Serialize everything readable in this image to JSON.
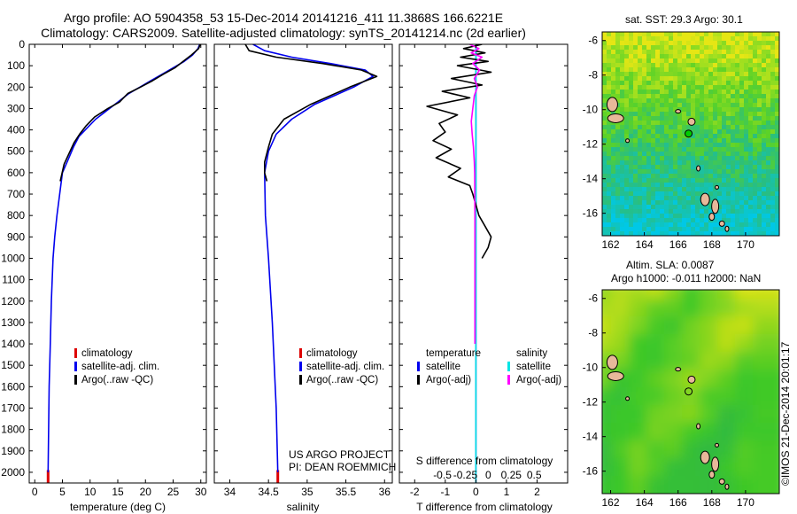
{
  "figure": {
    "title_line1": "Argo profile: AO 5904358_53 15-Dec-2014 20141216_411 11.3868S 166.6221E",
    "title_line2": "Climatology: CARS2009. Satellite-adjusted climatology: synTS_20141214.nc (2d earlier)",
    "sst_title": "sat. SST: 29.3 Argo: 30.1",
    "sla_title_line1": "Altim. SLA: 0.0087",
    "sla_title_line2": "Argo h1000: -0.011 h2000: NaN",
    "project_line1": "US ARGO PROJECT",
    "project_line2": "PI: DEAN ROEMMICH",
    "credit": "©IMOS 21-Dec-2014 20:01:17",
    "colors": {
      "climatology": "#dd0000",
      "satellite": "#0000ee",
      "argo": "#000000",
      "satellite_salinity": "#00e5e5",
      "argo_salinity": "#ff00ff"
    }
  },
  "chart_data": [
    {
      "type": "line",
      "id": "temperature",
      "xlabel": "temperature (deg C)",
      "xlim": [
        -1,
        31
      ],
      "ylim": [
        2050,
        0
      ],
      "xticks": [
        0,
        5,
        10,
        15,
        20,
        25,
        30
      ],
      "yticks": [
        0,
        100,
        200,
        300,
        400,
        500,
        600,
        700,
        800,
        900,
        1000,
        1100,
        1200,
        1300,
        1400,
        1500,
        1600,
        1700,
        1800,
        1900,
        2000
      ],
      "legend": [
        "climatology",
        "satellite-adj. clim.",
        "Argo(..raw -QC)"
      ],
      "series": [
        {
          "name": "climatology",
          "color": "#dd0000",
          "x": [
            2.4,
            2.4
          ],
          "y": [
            1990,
            2050
          ]
        },
        {
          "name": "satellite-adj. clim.",
          "color": "#0000ee",
          "x": [
            29.8,
            29.5,
            28.5,
            27,
            25,
            23,
            21,
            19,
            17,
            15,
            13,
            11,
            9.5,
            8,
            7,
            6,
            5,
            4.5,
            4,
            3.6,
            3.3,
            3,
            2.8,
            2.6,
            2.5,
            2.4
          ],
          "y": [
            0,
            20,
            50,
            80,
            110,
            140,
            170,
            200,
            230,
            270,
            310,
            350,
            390,
            430,
            480,
            540,
            600,
            700,
            800,
            900,
            1000,
            1200,
            1400,
            1600,
            1800,
            2000
          ]
        },
        {
          "name": "Argo(..raw -QC)",
          "color": "#000000",
          "x": [
            29.9,
            29.6,
            28.3,
            26.8,
            25.3,
            23.2,
            21.3,
            19.1,
            16.8,
            15.3,
            13.2,
            10.8,
            9.3,
            8.1,
            7.1,
            6.2,
            5.3,
            4.6
          ],
          "y": [
            0,
            20,
            50,
            80,
            110,
            140,
            170,
            200,
            230,
            270,
            300,
            340,
            380,
            420,
            460,
            510,
            560,
            640
          ]
        }
      ]
    },
    {
      "type": "line",
      "id": "salinity",
      "xlabel": "salinity",
      "xlim": [
        33.8,
        36.1
      ],
      "ylim": [
        2050,
        0
      ],
      "xticks": [
        34,
        34.5,
        35,
        35.5,
        36
      ],
      "legend": [
        "climatology",
        "satellite-adj. clim.",
        "Argo(..raw -QC)"
      ],
      "series": [
        {
          "name": "climatology",
          "color": "#dd0000",
          "x": [
            34.62,
            34.62
          ],
          "y": [
            1990,
            2050
          ]
        },
        {
          "name": "satellite-adj. clim.",
          "color": "#0000ee",
          "x": [
            34.3,
            34.45,
            34.8,
            35.3,
            35.75,
            35.85,
            35.6,
            35.1,
            34.8,
            34.6,
            34.5,
            34.45,
            34.46,
            34.5,
            34.55,
            34.6,
            34.62
          ],
          "y": [
            0,
            30,
            60,
            90,
            120,
            150,
            200,
            280,
            350,
            420,
            500,
            600,
            800,
            1000,
            1300,
            1700,
            2000
          ]
        },
        {
          "name": "Argo(..raw -QC)",
          "color": "#000000",
          "x": [
            34.2,
            34.25,
            34.6,
            35.2,
            35.7,
            35.9,
            35.55,
            35.05,
            34.7,
            34.55,
            34.5,
            34.45,
            34.45,
            34.48
          ],
          "y": [
            0,
            30,
            60,
            90,
            120,
            150,
            200,
            280,
            350,
            420,
            480,
            550,
            600,
            640
          ]
        }
      ]
    },
    {
      "type": "line",
      "id": "difference",
      "xlabel": "T difference from climatology",
      "top_label": "S difference from climatology",
      "xlim": [
        -2.5,
        3
      ],
      "ylim": [
        2050,
        0
      ],
      "xticks": [
        -2,
        -1,
        0,
        1,
        2
      ],
      "top_ticks": [
        "-0.5",
        "-0.25",
        "0",
        "0.25",
        "0.5"
      ],
      "legend_temperature": [
        "temperature",
        "satellite",
        "Argo(-adj)"
      ],
      "legend_salinity": [
        "salinity",
        "satellite",
        "Argo(-adj)"
      ],
      "series": [
        {
          "name": "satellite",
          "color": "#0000ee",
          "x": [
            0,
            0
          ],
          "y": [
            0,
            2050
          ]
        },
        {
          "name": "satellite",
          "color": "#00e5e5",
          "x": [
            0,
            0
          ],
          "y": [
            0,
            2050
          ]
        },
        {
          "name": "Argo(-adj)",
          "color": "#000000",
          "x": [
            0.2,
            -0.4,
            0.3,
            -0.5,
            0.4,
            -0.6,
            0.5,
            -0.8,
            0.2,
            -1.1,
            -0.2,
            -1.6,
            -0.6,
            -1.2,
            -1.0,
            -1.4,
            -0.8,
            -1.3,
            -0.5,
            -0.9,
            -0.2,
            -0.1,
            0.0,
            0.1,
            0.3,
            0.5,
            0.4,
            0.2
          ],
          "y": [
            0,
            20,
            40,
            60,
            80,
            100,
            130,
            160,
            190,
            220,
            250,
            290,
            330,
            370,
            410,
            450,
            490,
            530,
            580,
            620,
            660,
            700,
            750,
            800,
            850,
            900,
            950,
            1000
          ]
        },
        {
          "name": "Argo(-adj)",
          "color": "#ff00ff",
          "x": [
            -0.2,
            0.1,
            -0.15,
            0.2,
            -0.1,
            0.12,
            -0.05,
            0.05,
            -0.05,
            -0.1,
            -0.15,
            -0.12,
            -0.08,
            -0.05,
            -0.04,
            -0.03,
            -0.03
          ],
          "y": [
            0,
            20,
            40,
            60,
            90,
            120,
            160,
            200,
            240,
            300,
            360,
            420,
            480,
            550,
            600,
            800,
            1400
          ]
        }
      ]
    },
    {
      "type": "heatmap",
      "id": "sst-map",
      "title": "sat. SST: 29.3 Argo: 30.1",
      "xlim": [
        161.5,
        172
      ],
      "ylim": [
        -17.3,
        -5.5
      ],
      "xticks": [
        162,
        164,
        166,
        168,
        170
      ],
      "yticks": [
        -6,
        -8,
        -10,
        -12,
        -14,
        -16
      ],
      "argo_position": {
        "lon": 166.6221,
        "lat": -11.3868,
        "color": "#00cc00"
      }
    },
    {
      "type": "heatmap",
      "id": "sla-map",
      "title": "Altim. SLA: 0.0087",
      "xlim": [
        161.5,
        172
      ],
      "ylim": [
        -17.3,
        -5.5
      ],
      "xticks": [
        162,
        164,
        166,
        168,
        170
      ],
      "yticks": [
        -6,
        -8,
        -10,
        -12,
        -14,
        -16
      ],
      "argo_position": {
        "lon": 166.6221,
        "lat": -11.3868,
        "color": "#000000"
      }
    }
  ]
}
